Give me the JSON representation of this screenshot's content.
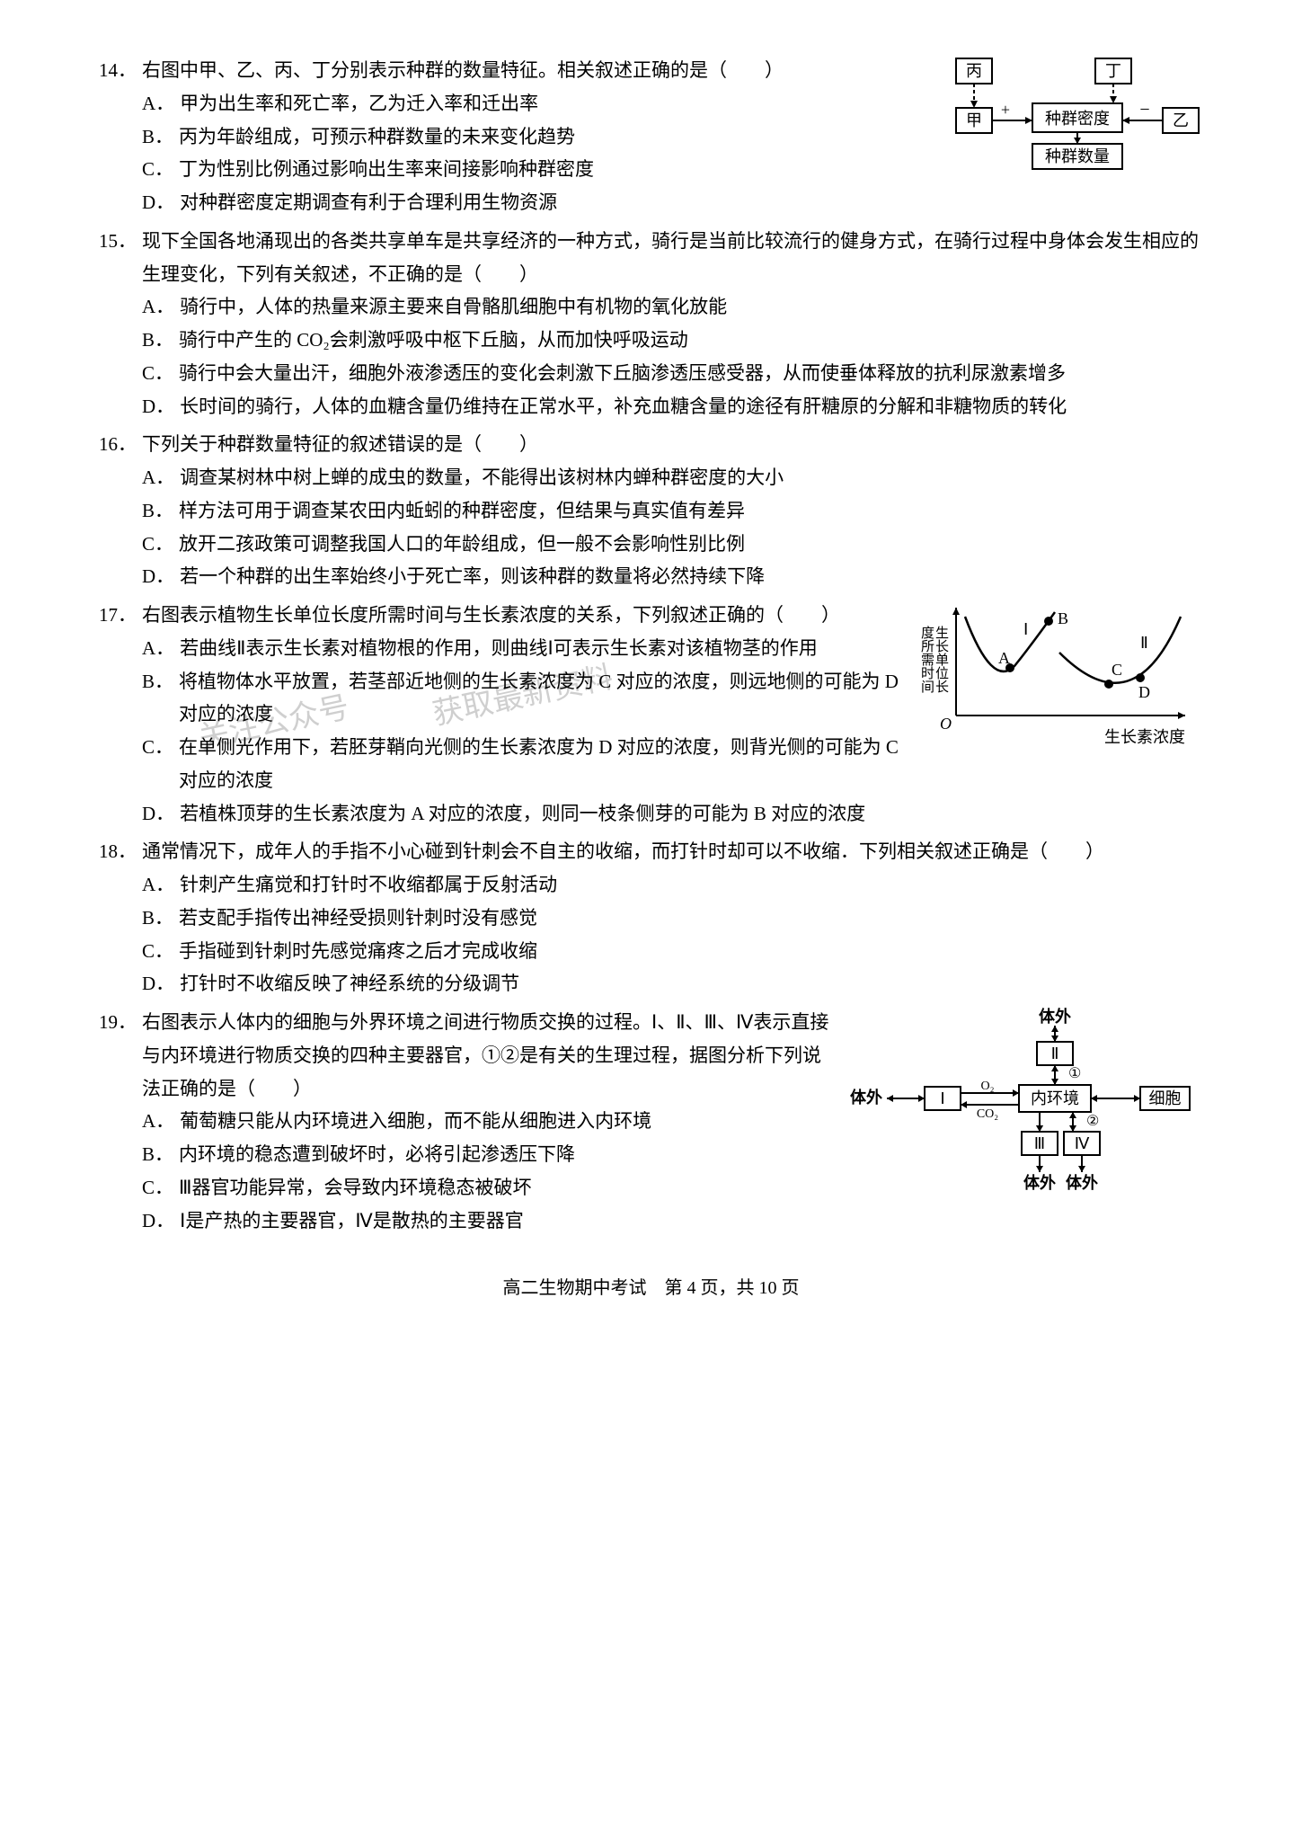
{
  "footer": "高二生物期中考试　第 4 页，共 10 页",
  "watermark1": "关注公众号",
  "watermark2": "获取最新资料",
  "fig14": {
    "labels": {
      "bing": "丙",
      "ding": "丁",
      "jia": "甲",
      "yi": "乙",
      "midu": "种群密度",
      "shuliang": "种群数量",
      "plus": "+",
      "minus": "−"
    },
    "box_border": "#000000",
    "line_color": "#000000",
    "font_size": 18,
    "background": "#f7f7f7"
  },
  "fig17": {
    "ylabel": "生长单位长\n度所需时间",
    "xlabel": "生长素浓度",
    "points": {
      "A": "A",
      "B": "B",
      "C": "C",
      "D": "D"
    },
    "curves": {
      "left": "Ⅰ",
      "right": "Ⅱ"
    },
    "axis_color": "#000000",
    "curve_color": "#000000",
    "marker_size": 5,
    "font_size": 18
  },
  "fig19": {
    "labels": {
      "tiwai": "体外",
      "I": "Ⅰ",
      "II": "Ⅱ",
      "III": "Ⅲ",
      "IV": "Ⅳ",
      "neihuanjing": "内环境",
      "xibao": "细胞",
      "o2": "O₂",
      "co2": "CO₂",
      "c1": "①",
      "c2": "②"
    },
    "box_border": "#000000",
    "line_color": "#000000",
    "font_size": 18
  },
  "questions": [
    {
      "num": "14．",
      "stem": "右图中甲、乙、丙、丁分别表示种群的数量特征。相关叙述正确的是（　　）",
      "fig": "fig14",
      "options": [
        {
          "l": "A．",
          "t": "甲为出生率和死亡率，乙为迁入率和迁出率"
        },
        {
          "l": "B．",
          "t": "丙为年龄组成，可预示种群数量的未来变化趋势"
        },
        {
          "l": "C．",
          "t": "丁为性别比例通过影响出生率来间接影响种群密度"
        },
        {
          "l": "D．",
          "t": "对种群密度定期调查有利于合理利用生物资源"
        }
      ]
    },
    {
      "num": "15．",
      "stem": "现下全国各地涌现出的各类共享单车是共享经济的一种方式，骑行是当前比较流行的健身方式，在骑行过程中身体会发生相应的生理变化，下列有关叙述，不正确的是（　　）",
      "options": [
        {
          "l": "A．",
          "t": "骑行中，人体的热量来源主要来自骨骼肌细胞中有机物的氧化放能"
        },
        {
          "l": "B．",
          "t": "骑行中产生的 CO₂会刺激呼吸中枢下丘脑，从而加快呼吸运动"
        },
        {
          "l": "C．",
          "t": "骑行中会大量出汗，细胞外液渗透压的变化会刺激下丘脑渗透压感受器，从而使垂体释放的抗利尿激素增多"
        },
        {
          "l": "D．",
          "t": "长时间的骑行，人体的血糖含量仍维持在正常水平，补充血糖含量的途径有肝糖原的分解和非糖物质的转化"
        }
      ]
    },
    {
      "num": "16．",
      "stem": "下列关于种群数量特征的叙述错误的是（　　）",
      "options": [
        {
          "l": "A．",
          "t": "调查某树林中树上蝉的成虫的数量，不能得出该树林内蝉种群密度的大小"
        },
        {
          "l": "B．",
          "t": "样方法可用于调查某农田内蚯蚓的种群密度，但结果与真实值有差异"
        },
        {
          "l": "C．",
          "t": "放开二孩政策可调整我国人口的年龄组成，但一般不会影响性别比例"
        },
        {
          "l": "D．",
          "t": "若一个种群的出生率始终小于死亡率，则该种群的数量将必然持续下降"
        }
      ]
    },
    {
      "num": "17．",
      "stem": "右图表示植物生长单位长度所需时间与生长素浓度的关系，下列叙述正确的（　　）",
      "fig": "fig17",
      "options": [
        {
          "l": "A．",
          "t": "若曲线Ⅱ表示生长素对植物根的作用，则曲线Ⅰ可表示生长素对该植物茎的作用"
        },
        {
          "l": "B．",
          "t": "将植物体水平放置，若茎部近地侧的生长素浓度为 C 对应的浓度，则远地侧的可能为 D 对应的浓度"
        },
        {
          "l": "C．",
          "t": "在单侧光作用下，若胚芽鞘向光侧的生长素浓度为 D 对应的浓度，则背光侧的可能为 C 对应的浓度"
        },
        {
          "l": "D．",
          "t": "若植株顶芽的生长素浓度为 A 对应的浓度，则同一枝条侧芽的可能为 B 对应的浓度"
        }
      ]
    },
    {
      "num": "18．",
      "stem": "通常情况下，成年人的手指不小心碰到针刺会不自主的收缩，而打针时却可以不收缩．下列相关叙述正确是（　　）",
      "options": [
        {
          "l": "A．",
          "t": "针刺产生痛觉和打针时不收缩都属于反射活动"
        },
        {
          "l": "B．",
          "t": "若支配手指传出神经受损则针刺时没有感觉"
        },
        {
          "l": "C．",
          "t": "手指碰到针刺时先感觉痛疼之后才完成收缩"
        },
        {
          "l": "D．",
          "t": "打针时不收缩反映了神经系统的分级调节"
        }
      ]
    },
    {
      "num": "19．",
      "stem": "右图表示人体内的细胞与外界环境之间进行物质交换的过程。Ⅰ、Ⅱ、Ⅲ、Ⅳ表示直接与内环境进行物质交换的四种主要器官，①②是有关的生理过程，据图分析下列说法正确的是（　　）",
      "fig": "fig19",
      "options": [
        {
          "l": "A．",
          "t": "葡萄糖只能从内环境进入细胞，而不能从细胞进入内环境"
        },
        {
          "l": "B．",
          "t": "内环境的稳态遭到破坏时，必将引起渗透压下降"
        },
        {
          "l": "C．",
          "t": "Ⅲ器官功能异常，会导致内环境稳态被破坏"
        },
        {
          "l": "D．",
          "t": "Ⅰ是产热的主要器官，Ⅳ是散热的主要器官"
        }
      ]
    }
  ]
}
